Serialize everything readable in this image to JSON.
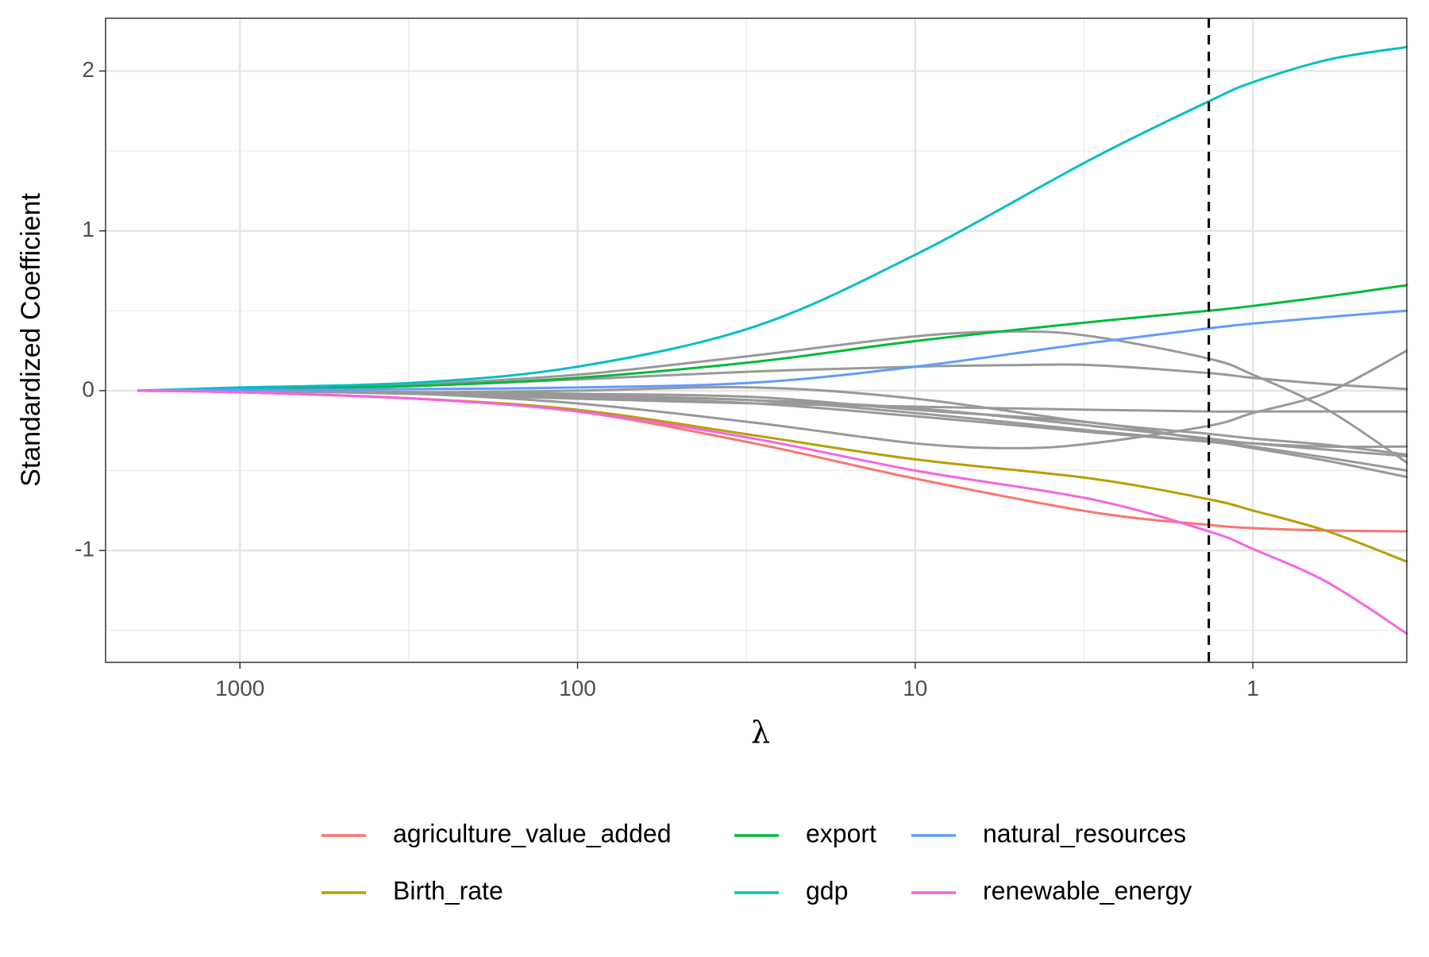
{
  "chart_data": {
    "type": "line",
    "title": "",
    "xlabel": "λ",
    "ylabel": "Standardized Coefficient",
    "x_scale": "log10-reversed",
    "xlim": [
      2500,
      0.35
    ],
    "ylim": [
      -1.7,
      2.33
    ],
    "x_ticks": [
      {
        "value": 1000,
        "label": "1000"
      },
      {
        "value": 100,
        "label": "100"
      },
      {
        "value": 10,
        "label": "10"
      },
      {
        "value": 1,
        "label": "1"
      }
    ],
    "y_ticks": [
      {
        "value": 2,
        "label": "2"
      },
      {
        "value": 1,
        "label": "1"
      },
      {
        "value": 0,
        "label": "0"
      },
      {
        "value": -1,
        "label": "-1"
      }
    ],
    "y_minor": [
      2.5,
      1.5,
      0.5,
      -0.5,
      -1.5
    ],
    "grid": true,
    "legend_position": "bottom",
    "reference_line": {
      "x": 1.35,
      "style": "dashed",
      "color": "#000000"
    },
    "series": [
      {
        "name": "agriculture_value_added",
        "color": "#F8766D",
        "highlight": true,
        "x": [
          2000,
          1000,
          300,
          100,
          30,
          10,
          3,
          1.35,
          1,
          0.6,
          0.35
        ],
        "y": [
          0,
          -0.01,
          -0.05,
          -0.13,
          -0.33,
          -0.55,
          -0.76,
          -0.84,
          -0.86,
          -0.875,
          -0.88
        ]
      },
      {
        "name": "Birth_rate",
        "color": "#B79F00",
        "highlight": true,
        "x": [
          2000,
          1000,
          300,
          100,
          30,
          10,
          3,
          1.35,
          1,
          0.6,
          0.35
        ],
        "y": [
          0,
          -0.01,
          -0.05,
          -0.12,
          -0.28,
          -0.43,
          -0.55,
          -0.68,
          -0.75,
          -0.88,
          -1.07
        ]
      },
      {
        "name": "export",
        "color": "#00BA38",
        "highlight": true,
        "x": [
          2000,
          1000,
          300,
          100,
          30,
          10,
          3,
          1.35,
          1,
          0.6,
          0.35
        ],
        "y": [
          0,
          0.01,
          0.03,
          0.08,
          0.18,
          0.31,
          0.43,
          0.5,
          0.53,
          0.59,
          0.66
        ]
      },
      {
        "name": "gdp",
        "color": "#00BFC4",
        "highlight": true,
        "x": [
          2000,
          1000,
          300,
          100,
          30,
          10,
          3,
          1.35,
          1,
          0.6,
          0.35
        ],
        "y": [
          0,
          0.02,
          0.05,
          0.15,
          0.4,
          0.85,
          1.45,
          1.81,
          1.93,
          2.07,
          2.15
        ]
      },
      {
        "name": "natural_resources",
        "color": "#619CFF",
        "highlight": true,
        "x": [
          2000,
          1000,
          300,
          100,
          30,
          10,
          3,
          1.35,
          1,
          0.6,
          0.35
        ],
        "y": [
          0,
          0.005,
          0.01,
          0.02,
          0.05,
          0.15,
          0.3,
          0.39,
          0.42,
          0.46,
          0.5
        ]
      },
      {
        "name": "renewable_energy",
        "color": "#F564E3",
        "highlight": true,
        "x": [
          2000,
          1000,
          300,
          100,
          30,
          10,
          3,
          1.35,
          1,
          0.6,
          0.35
        ],
        "y": [
          0,
          -0.01,
          -0.05,
          -0.13,
          -0.3,
          -0.5,
          -0.68,
          -0.88,
          -0.99,
          -1.2,
          -1.52
        ]
      },
      {
        "name": "",
        "color": "#999999",
        "highlight": false,
        "x": [
          2000,
          1000,
          300,
          100,
          30,
          10,
          5,
          3,
          1.35,
          1,
          0.6,
          0.35
        ],
        "y": [
          0,
          0.01,
          0.04,
          0.1,
          0.22,
          0.34,
          0.37,
          0.34,
          0.2,
          0.1,
          -0.12,
          -0.45
        ]
      },
      {
        "name": "",
        "color": "#999999",
        "highlight": false,
        "x": [
          2000,
          1000,
          300,
          100,
          30,
          10,
          5,
          3,
          1.35,
          1,
          0.6,
          0.35
        ],
        "y": [
          0,
          0.005,
          0.03,
          0.07,
          0.12,
          0.15,
          0.16,
          0.16,
          0.11,
          0.08,
          0.04,
          0.01
        ]
      },
      {
        "name": "",
        "color": "#999999",
        "highlight": false,
        "x": [
          2000,
          1000,
          300,
          100,
          30,
          10,
          5,
          3,
          1.35,
          1,
          0.6,
          0.35
        ],
        "y": [
          0,
          0,
          -0.02,
          -0.08,
          -0.2,
          -0.33,
          -0.36,
          -0.33,
          -0.22,
          -0.14,
          -0.01,
          0.25
        ]
      },
      {
        "name": "",
        "color": "#999999",
        "highlight": false,
        "x": [
          2000,
          1000,
          300,
          100,
          30,
          10,
          3,
          1.35,
          1,
          0.6,
          0.35
        ],
        "y": [
          0,
          0,
          -0.02,
          -0.05,
          -0.08,
          -0.1,
          -0.12,
          -0.13,
          -0.13,
          -0.13,
          -0.13
        ]
      },
      {
        "name": "",
        "color": "#999999",
        "highlight": false,
        "x": [
          2000,
          1000,
          300,
          100,
          30,
          10,
          3,
          1.35,
          1,
          0.6,
          0.35
        ],
        "y": [
          0,
          0,
          -0.01,
          0,
          0.02,
          -0.05,
          -0.2,
          -0.27,
          -0.3,
          -0.34,
          -0.4
        ]
      },
      {
        "name": "",
        "color": "#999999",
        "highlight": false,
        "x": [
          2000,
          1000,
          300,
          100,
          30,
          10,
          3,
          1.35,
          1,
          0.6,
          0.35
        ],
        "y": [
          0,
          0,
          -0.01,
          -0.03,
          -0.06,
          -0.11,
          -0.22,
          -0.3,
          -0.33,
          -0.35,
          -0.35
        ]
      },
      {
        "name": "",
        "color": "#999999",
        "highlight": false,
        "x": [
          2000,
          1000,
          300,
          100,
          30,
          10,
          3,
          1.35,
          1,
          0.6,
          0.35
        ],
        "y": [
          0,
          0,
          -0.01,
          -0.03,
          -0.06,
          -0.14,
          -0.25,
          -0.32,
          -0.35,
          -0.42,
          -0.5
        ]
      },
      {
        "name": "",
        "color": "#999999",
        "highlight": false,
        "x": [
          2000,
          1000,
          300,
          100,
          30,
          10,
          3,
          1.35,
          1,
          0.6,
          0.35
        ],
        "y": [
          0,
          0,
          -0.02,
          -0.04,
          -0.08,
          -0.16,
          -0.26,
          -0.32,
          -0.36,
          -0.44,
          -0.54
        ]
      },
      {
        "name": "",
        "color": "#999999",
        "highlight": false,
        "x": [
          2000,
          1000,
          300,
          100,
          30,
          10,
          3,
          1.35,
          1,
          0.6,
          0.35
        ],
        "y": [
          0,
          0,
          -0.01,
          -0.02,
          -0.04,
          -0.12,
          -0.2,
          -0.31,
          -0.33,
          -0.37,
          -0.41
        ]
      }
    ]
  }
}
